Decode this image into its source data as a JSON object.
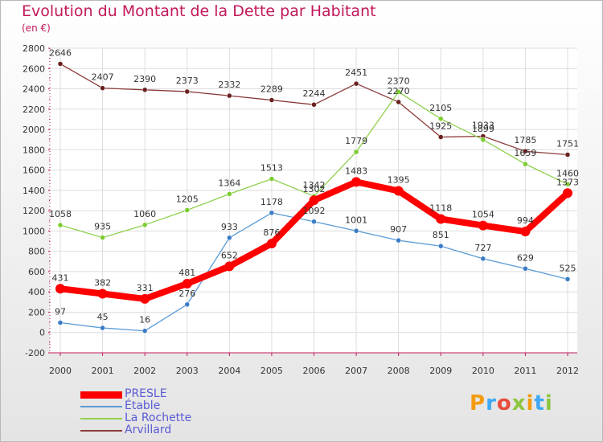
{
  "title": "Evolution du Montant de la Dette par Habitant",
  "subtitle": "(en €)",
  "brand": "Proxiti",
  "chart_data": {
    "type": "line",
    "x": [
      "2000",
      "2001",
      "2002",
      "2003",
      "2004",
      "2005",
      "2006",
      "2007",
      "2008",
      "2009",
      "2010",
      "2011",
      "2012"
    ],
    "ylim": [
      -200,
      2800
    ],
    "yticks": [
      -200,
      0,
      200,
      400,
      600,
      800,
      1000,
      1200,
      1400,
      1600,
      1800,
      2000,
      2200,
      2400,
      2600,
      2800
    ],
    "grid": true,
    "legend_position": "bottom-left",
    "series": [
      {
        "name": "PRESLE",
        "color": "#ff0000",
        "values": [
          431,
          382,
          331,
          481,
          652,
          876,
          1302,
          1483,
          1395,
          1118,
          1054,
          994,
          1373
        ]
      },
      {
        "name": "Étable",
        "color": "#5b9bd5",
        "values": [
          97,
          45,
          16,
          276,
          933,
          1178,
          1092,
          1001,
          907,
          851,
          727,
          629,
          525
        ]
      },
      {
        "name": "La Rochette",
        "color": "#8fd14f",
        "values": [
          1058,
          935,
          1060,
          1205,
          1364,
          1513,
          1342,
          1779,
          2370,
          2105,
          1899,
          1659,
          1460
        ]
      },
      {
        "name": "Arvillard",
        "color": "#8b3a3a",
        "values": [
          2646,
          2407,
          2390,
          2373,
          2332,
          2289,
          2244,
          2451,
          2270,
          1925,
          1933,
          1785,
          1751
        ]
      }
    ]
  }
}
